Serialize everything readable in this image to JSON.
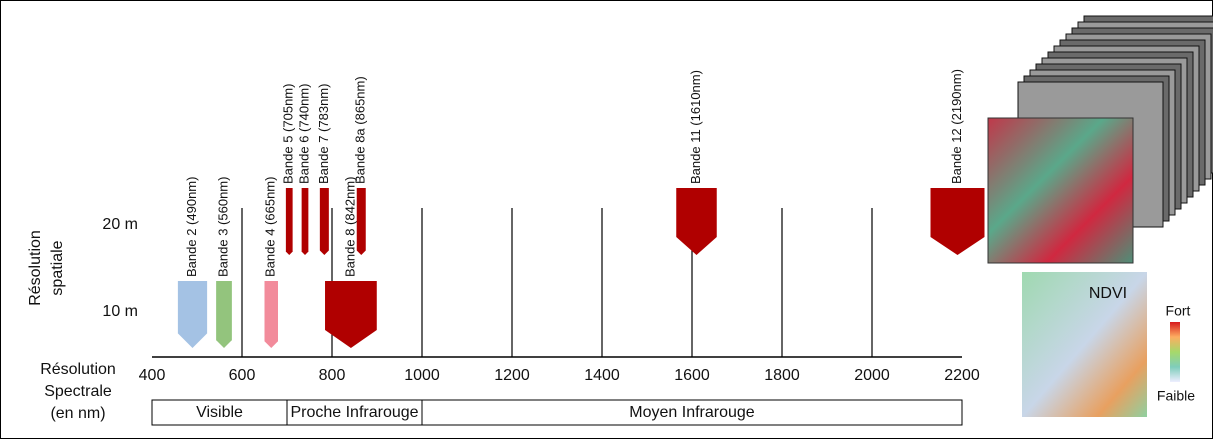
{
  "spatial_axis": {
    "title_lines": [
      "Résolution",
      "spatiale"
    ],
    "levels": [
      {
        "label": "20 m",
        "value": 20
      },
      {
        "label": "10 m",
        "value": 10
      }
    ]
  },
  "spectral_axis": {
    "title_lines": [
      "Résolution",
      "Spectrale",
      "(en nm)"
    ],
    "xlim": [
      400,
      2200
    ],
    "xticks": [
      400,
      600,
      800,
      1000,
      1200,
      1400,
      1600,
      1800,
      2000,
      2200
    ]
  },
  "regions": [
    {
      "label": "Visible",
      "start": 400,
      "end": 700
    },
    {
      "label": "Proche Infrarouge",
      "start": 700,
      "end": 1000
    },
    {
      "label": "Moyen Infrarouge",
      "start": 1000,
      "end": 2200
    }
  ],
  "bands": [
    {
      "label": "Bande 2 (490nm)",
      "wavelength": 490,
      "bandwidth": 65,
      "resolution": 10,
      "color": "#a4c2e4"
    },
    {
      "label": "Bande 3 (560nm)",
      "wavelength": 560,
      "bandwidth": 35,
      "resolution": 10,
      "color": "#93c47d"
    },
    {
      "label": "Bande 4 (665nm)",
      "wavelength": 665,
      "bandwidth": 30,
      "resolution": 10,
      "color": "#f28b9b"
    },
    {
      "label": "Bande 5 (705nm)",
      "wavelength": 705,
      "bandwidth": 15,
      "resolution": 20,
      "color": "#b00000"
    },
    {
      "label": "Bande 6 (740nm)",
      "wavelength": 740,
      "bandwidth": 15,
      "resolution": 20,
      "color": "#b00000"
    },
    {
      "label": "Bande 7 (783nm)",
      "wavelength": 783,
      "bandwidth": 20,
      "resolution": 20,
      "color": "#b00000"
    },
    {
      "label": "Bande 8 (842nm)",
      "wavelength": 842,
      "bandwidth": 115,
      "resolution": 10,
      "color": "#b00000"
    },
    {
      "label": "Bande 8a (865nm)",
      "wavelength": 865,
      "bandwidth": 20,
      "resolution": 20,
      "color": "#b00000"
    },
    {
      "label": "Bande 11 (1610nm)",
      "wavelength": 1610,
      "bandwidth": 90,
      "resolution": 20,
      "color": "#b00000"
    },
    {
      "label": "Bande 12 (2190nm)",
      "wavelength": 2190,
      "bandwidth": 120,
      "resolution": 20,
      "color": "#b00000"
    }
  ],
  "images": {
    "ndvi_title": "NDVI",
    "legend_high": "Fort",
    "legend_low": "Faible"
  }
}
